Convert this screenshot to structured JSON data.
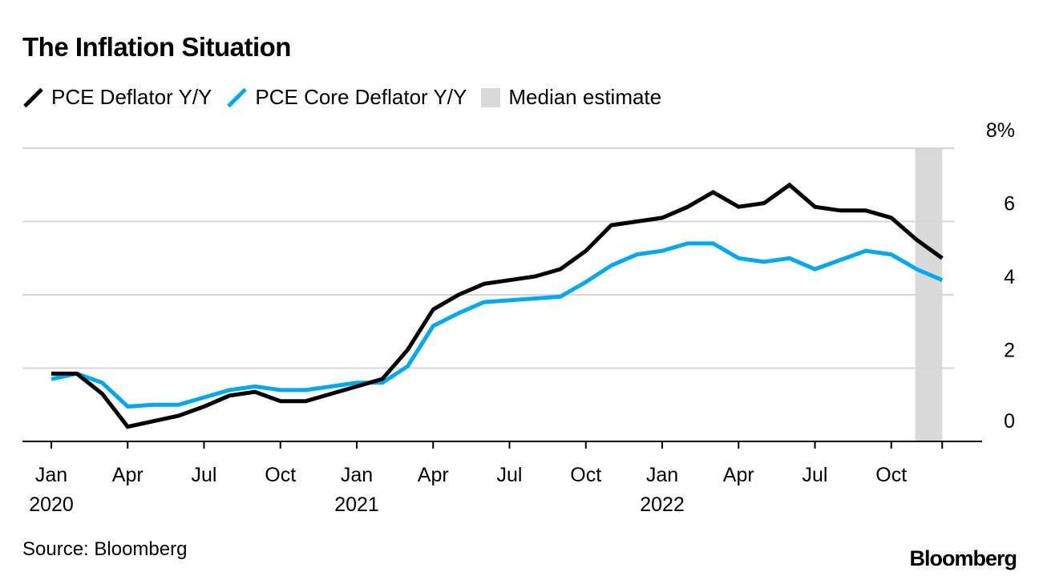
{
  "chart_data": {
    "type": "line",
    "title": "The Inflation Situation",
    "source": "Source: Bloomberg",
    "brand": "Bloomberg",
    "xlabel": "",
    "ylabel": "",
    "ylim": [
      0,
      8
    ],
    "yticks": [
      0,
      2,
      4,
      6,
      8
    ],
    "ytick_labels": [
      "0",
      "2",
      "4",
      "6",
      "8%"
    ],
    "y_axis_position": "right",
    "grid": true,
    "legend_placement": "top-left",
    "x_months": [
      "2020-01",
      "2020-02",
      "2020-03",
      "2020-04",
      "2020-05",
      "2020-06",
      "2020-07",
      "2020-08",
      "2020-09",
      "2020-10",
      "2020-11",
      "2020-12",
      "2021-01",
      "2021-02",
      "2021-03",
      "2021-04",
      "2021-05",
      "2021-06",
      "2021-07",
      "2021-08",
      "2021-09",
      "2021-10",
      "2021-11",
      "2021-12",
      "2022-01",
      "2022-02",
      "2022-03",
      "2022-04",
      "2022-05",
      "2022-06",
      "2022-07",
      "2022-08",
      "2022-09",
      "2022-10",
      "2022-11",
      "2022-12"
    ],
    "xticks": [
      {
        "index": 0,
        "label": "Jan",
        "year": "2020"
      },
      {
        "index": 3,
        "label": "Apr",
        "year": ""
      },
      {
        "index": 6,
        "label": "Jul",
        "year": ""
      },
      {
        "index": 9,
        "label": "Oct",
        "year": ""
      },
      {
        "index": 12,
        "label": "Jan",
        "year": "2021"
      },
      {
        "index": 15,
        "label": "Apr",
        "year": ""
      },
      {
        "index": 18,
        "label": "Jul",
        "year": ""
      },
      {
        "index": 21,
        "label": "Oct",
        "year": ""
      },
      {
        "index": 24,
        "label": "Jan",
        "year": "2022"
      },
      {
        "index": 27,
        "label": "Apr",
        "year": ""
      },
      {
        "index": 30,
        "label": "Jul",
        "year": ""
      },
      {
        "index": 33,
        "label": "Oct",
        "year": ""
      }
    ],
    "shaded_region": {
      "name": "Median estimate",
      "from_index": 34,
      "to_index": 35,
      "color": "#d9d9d9"
    },
    "series": [
      {
        "name": "PCE Deflator Y/Y",
        "color": "#000000",
        "values": [
          1.85,
          1.85,
          1.3,
          0.4,
          0.55,
          0.7,
          0.95,
          1.25,
          1.35,
          1.1,
          1.1,
          1.3,
          1.5,
          1.7,
          2.5,
          3.6,
          4.0,
          4.3,
          4.4,
          4.5,
          4.7,
          5.2,
          5.9,
          6.0,
          6.1,
          6.4,
          6.8,
          6.4,
          6.5,
          7.0,
          6.4,
          6.3,
          6.3,
          6.1,
          5.5,
          5.0
        ]
      },
      {
        "name": "PCE Core Deflator Y/Y",
        "color": "#00a9f4",
        "values": [
          1.7,
          1.85,
          1.6,
          0.95,
          1.0,
          1.0,
          1.2,
          1.4,
          1.5,
          1.4,
          1.4,
          1.5,
          1.6,
          1.6,
          2.05,
          3.15,
          3.5,
          3.8,
          3.85,
          3.9,
          3.95,
          4.35,
          4.8,
          5.1,
          5.2,
          5.4,
          5.4,
          5.0,
          4.9,
          5.0,
          4.7,
          4.95,
          5.2,
          5.1,
          4.7,
          4.4
        ]
      }
    ]
  }
}
